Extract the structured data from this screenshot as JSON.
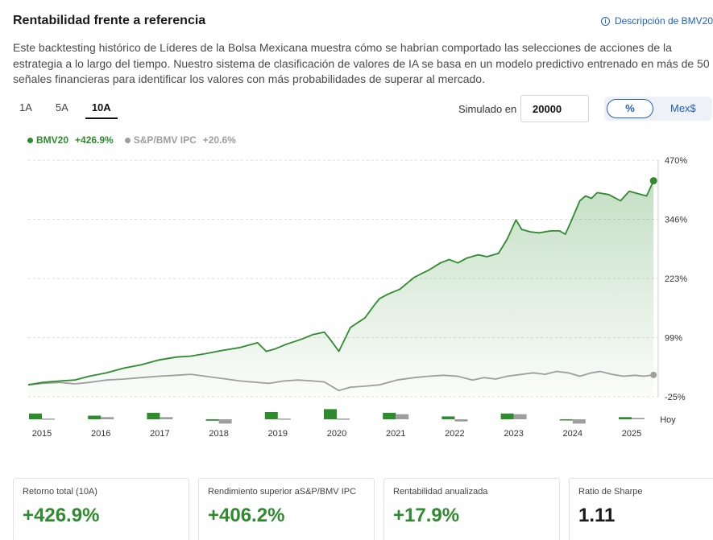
{
  "header": {
    "title": "Rentabilidad frente a referencia",
    "description_link": "Descripción de BMV20",
    "description": "Este backtesting histórico de Líderes de la Bolsa Mexicana muestra cómo se habrían comportado las selecciones de acciones de la estrategia a lo largo del tiempo. Nuestro sistema de clasificación de valores de IA se basa en un modelo predictivo entrenado en más de 50 señales financieras para identificar los valores con más probabilidades de superar al mercado."
  },
  "tabs": [
    {
      "label": "1A",
      "active": false
    },
    {
      "label": "5A",
      "active": false
    },
    {
      "label": "10A",
      "active": true
    }
  ],
  "simulation": {
    "label": "Simulado en",
    "value": "20000",
    "unit_pct": "%",
    "unit_mxn": "Mex$"
  },
  "legend": {
    "strategy_name": "BMV20",
    "strategy_value": "+426.9%",
    "benchmark_name": "S&P/BMV IPC",
    "benchmark_value": "+20.6%"
  },
  "colors": {
    "strategy": "#2e8b2e",
    "benchmark": "#9e9e9e",
    "accent": "#1f5fbf"
  },
  "chart_data": {
    "type": "line",
    "y_axis_position": "right",
    "y_ticks": [
      "470%",
      "346%",
      "223%",
      "99%",
      "-25%"
    ],
    "ylim": [
      -25,
      470
    ],
    "x_ticks": [
      "2015",
      "2016",
      "2017",
      "2018",
      "2019",
      "2020",
      "2021",
      "2022",
      "2023",
      "2024",
      "2025",
      "Hoy"
    ],
    "xlim": [
      2014.95,
      2025.8
    ],
    "series": [
      {
        "name": "BMV20",
        "end_value": "+426.9%",
        "points": [
          [
            2014.95,
            0
          ],
          [
            2015.2,
            5
          ],
          [
            2015.5,
            8
          ],
          [
            2015.75,
            10
          ],
          [
            2016.0,
            18
          ],
          [
            2016.3,
            25
          ],
          [
            2016.6,
            35
          ],
          [
            2016.9,
            42
          ],
          [
            2017.2,
            52
          ],
          [
            2017.5,
            58
          ],
          [
            2017.75,
            60
          ],
          [
            2018.0,
            65
          ],
          [
            2018.3,
            72
          ],
          [
            2018.6,
            78
          ],
          [
            2018.9,
            88
          ],
          [
            2019.05,
            70
          ],
          [
            2019.2,
            75
          ],
          [
            2019.4,
            85
          ],
          [
            2019.65,
            95
          ],
          [
            2019.85,
            105
          ],
          [
            2020.05,
            110
          ],
          [
            2020.15,
            95
          ],
          [
            2020.3,
            70
          ],
          [
            2020.5,
            120
          ],
          [
            2020.75,
            140
          ],
          [
            2020.9,
            165
          ],
          [
            2021.0,
            180
          ],
          [
            2021.15,
            190
          ],
          [
            2021.35,
            200
          ],
          [
            2021.6,
            225
          ],
          [
            2021.85,
            240
          ],
          [
            2022.05,
            255
          ],
          [
            2022.2,
            262
          ],
          [
            2022.35,
            255
          ],
          [
            2022.5,
            265
          ],
          [
            2022.7,
            272
          ],
          [
            2022.85,
            268
          ],
          [
            2023.05,
            275
          ],
          [
            2023.2,
            305
          ],
          [
            2023.35,
            345
          ],
          [
            2023.45,
            325
          ],
          [
            2023.6,
            320
          ],
          [
            2023.75,
            318
          ],
          [
            2023.95,
            322
          ],
          [
            2024.1,
            322
          ],
          [
            2024.2,
            315
          ],
          [
            2024.3,
            342
          ],
          [
            2024.45,
            385
          ],
          [
            2024.55,
            395
          ],
          [
            2024.65,
            390
          ],
          [
            2024.75,
            402
          ],
          [
            2024.95,
            398
          ],
          [
            2025.15,
            385
          ],
          [
            2025.3,
            405
          ],
          [
            2025.45,
            400
          ],
          [
            2025.6,
            395
          ],
          [
            2025.72,
            426.9
          ]
        ]
      },
      {
        "name": "S&P/BMV IPC",
        "end_value": "+20.6%",
        "points": [
          [
            2014.95,
            0
          ],
          [
            2015.2,
            3
          ],
          [
            2015.5,
            5
          ],
          [
            2015.75,
            2
          ],
          [
            2016.0,
            5
          ],
          [
            2016.3,
            10
          ],
          [
            2016.6,
            12
          ],
          [
            2016.9,
            15
          ],
          [
            2017.2,
            18
          ],
          [
            2017.5,
            20
          ],
          [
            2017.75,
            22
          ],
          [
            2018.0,
            18
          ],
          [
            2018.3,
            13
          ],
          [
            2018.6,
            8
          ],
          [
            2018.9,
            5
          ],
          [
            2019.1,
            3
          ],
          [
            2019.35,
            8
          ],
          [
            2019.6,
            10
          ],
          [
            2019.85,
            8
          ],
          [
            2020.05,
            6
          ],
          [
            2020.3,
            -12
          ],
          [
            2020.5,
            -5
          ],
          [
            2020.75,
            -3
          ],
          [
            2021.0,
            0
          ],
          [
            2021.3,
            10
          ],
          [
            2021.6,
            15
          ],
          [
            2021.85,
            18
          ],
          [
            2022.1,
            20
          ],
          [
            2022.35,
            18
          ],
          [
            2022.6,
            10
          ],
          [
            2022.8,
            15
          ],
          [
            2023.0,
            12
          ],
          [
            2023.2,
            18
          ],
          [
            2023.45,
            22
          ],
          [
            2023.65,
            25
          ],
          [
            2023.85,
            22
          ],
          [
            2024.05,
            28
          ],
          [
            2024.25,
            25
          ],
          [
            2024.45,
            18
          ],
          [
            2024.65,
            25
          ],
          [
            2024.8,
            28
          ],
          [
            2025.0,
            22
          ],
          [
            2025.2,
            18
          ],
          [
            2025.4,
            20
          ],
          [
            2025.55,
            18
          ],
          [
            2025.72,
            20.6
          ]
        ]
      }
    ],
    "annual_bars": [
      {
        "year": "2015",
        "strategy": 8,
        "benchmark": 1
      },
      {
        "year": "2016",
        "strategy": 5,
        "benchmark": 3
      },
      {
        "year": "2017",
        "strategy": 9,
        "benchmark": 3
      },
      {
        "year": "2018",
        "strategy": -2,
        "benchmark": -6
      },
      {
        "year": "2019",
        "strategy": 10,
        "benchmark": 1
      },
      {
        "year": "2020",
        "strategy": 14,
        "benchmark": 1
      },
      {
        "year": "2021",
        "strategy": 9,
        "benchmark": 7
      },
      {
        "year": "2022",
        "strategy": 4,
        "benchmark": -3
      },
      {
        "year": "2023",
        "strategy": 8,
        "benchmark": 7
      },
      {
        "year": "2024",
        "strategy": -1,
        "benchmark": -6
      },
      {
        "year": "2025",
        "strategy": 3,
        "benchmark": 2
      }
    ]
  },
  "cards": [
    {
      "label": "Retorno total (10A)",
      "value": "+426.9%",
      "tone": "pos"
    },
    {
      "label": "Rendimiento superior aS&P/BMV IPC",
      "value": "+406.2%",
      "tone": "pos"
    },
    {
      "label": "Rentabilidad anualizada",
      "value": "+17.9%",
      "tone": "pos"
    },
    {
      "label": "Ratio de Sharpe",
      "value": "1.11",
      "tone": "neutral"
    }
  ]
}
